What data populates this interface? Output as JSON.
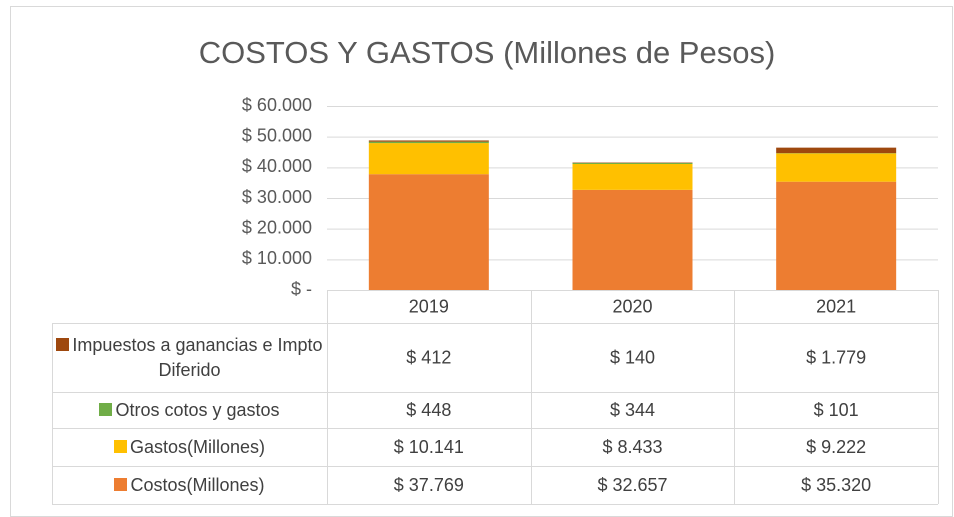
{
  "chart_data": {
    "type": "stacked_bar",
    "title": "COSTOS Y GASTOS (Millones de Pesos)",
    "categories": [
      "2019",
      "2020",
      "2021"
    ],
    "series": [
      {
        "name": "Costos(Millones)",
        "color": "#ED7D31",
        "values": [
          37769,
          32657,
          35320
        ],
        "value_labels": [
          "$ 37.769",
          "$ 32.657",
          "$ 35.320"
        ]
      },
      {
        "name": "Gastos(Millones)",
        "color": "#FFC000",
        "values": [
          10141,
          8433,
          9222
        ],
        "value_labels": [
          "$ 10.141",
          "$ 8.433",
          "$ 9.222"
        ]
      },
      {
        "name": "Otros cotos y gastos",
        "color": "#70AD47",
        "values": [
          448,
          344,
          101
        ],
        "value_labels": [
          "$ 448",
          "$ 344",
          "$ 101"
        ]
      },
      {
        "name": "Impuestos a ganancias e Impto Diferido",
        "color": "#9E480E",
        "values": [
          412,
          140,
          1779
        ],
        "value_labels": [
          "$ 412",
          "$ 140",
          "$ 1.779"
        ]
      }
    ],
    "ylim": [
      0,
      60000
    ],
    "yticks": [
      {
        "value": 0,
        "label": "$ -"
      },
      {
        "value": 10000,
        "label": "$ 10.000"
      },
      {
        "value": 20000,
        "label": "$ 20.000"
      },
      {
        "value": 30000,
        "label": "$ 30.000"
      },
      {
        "value": 40000,
        "label": "$ 40.000"
      },
      {
        "value": 50000,
        "label": "$ 50.000"
      },
      {
        "value": 60000,
        "label": "$ 60.000"
      }
    ],
    "grid": true
  }
}
